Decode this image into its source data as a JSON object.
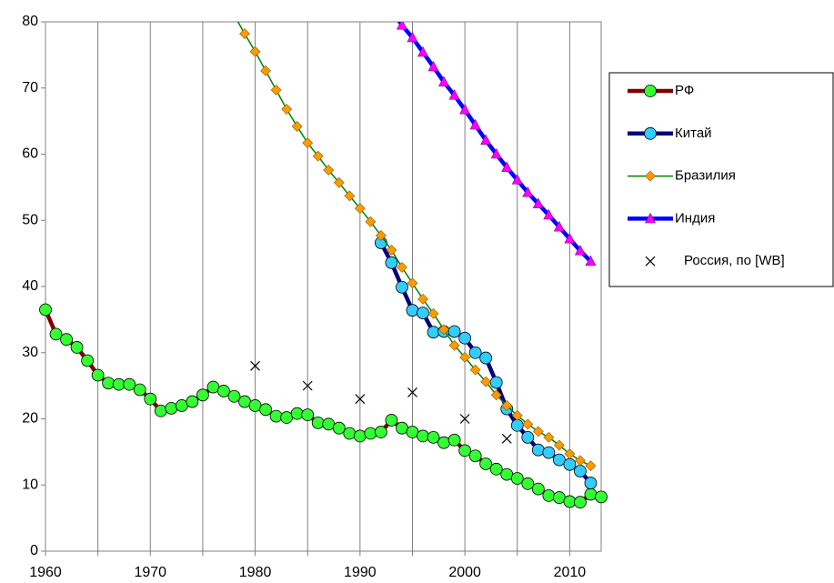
{
  "chart_data": {
    "type": "line",
    "xlim": [
      1960,
      2013
    ],
    "ylim": [
      0,
      80
    ],
    "xticks": [
      1960,
      1970,
      1980,
      1990,
      2000,
      2010
    ],
    "xminorticks": [
      1965,
      1975,
      1985,
      1995,
      2005
    ],
    "yticks": [
      0,
      10,
      20,
      30,
      40,
      50,
      60,
      70,
      80
    ],
    "grid": true,
    "legend": "right",
    "series": [
      {
        "name": "РФ",
        "color": "#800000",
        "marker": "circle",
        "marker_color": "#33ff33",
        "x": [
          1960,
          1961,
          1962,
          1963,
          1964,
          1965,
          1966,
          1967,
          1968,
          1969,
          1970,
          1971,
          1972,
          1973,
          1974,
          1975,
          1976,
          1977,
          1978,
          1979,
          1980,
          1981,
          1982,
          1983,
          1984,
          1985,
          1986,
          1987,
          1988,
          1989,
          1990,
          1991,
          1992,
          1993,
          1994,
          1995,
          1996,
          1997,
          1998,
          1999,
          2000,
          2001,
          2002,
          2003,
          2004,
          2005,
          2006,
          2007,
          2008,
          2009,
          2010,
          2011,
          2012,
          2013
        ],
        "values": [
          36.5,
          32.8,
          32.0,
          30.8,
          28.8,
          26.6,
          25.4,
          25.2,
          25.2,
          24.4,
          23.0,
          21.2,
          21.6,
          22.0,
          22.6,
          23.6,
          24.8,
          24.2,
          23.4,
          22.6,
          22.0,
          21.4,
          20.4,
          20.2,
          20.8,
          20.6,
          19.4,
          19.2,
          18.6,
          17.8,
          17.4,
          17.8,
          18.0,
          19.8,
          18.6,
          18.0,
          17.4,
          17.2,
          16.4,
          16.8,
          15.2,
          14.4,
          13.2,
          12.4,
          11.6,
          11.0,
          10.2,
          9.4,
          8.4,
          8.1,
          7.5,
          7.4,
          8.6,
          8.2
        ]
      },
      {
        "name": "Китай",
        "color": "#000080",
        "marker": "circle",
        "marker_color": "#33ccff",
        "x": [
          1992,
          1993,
          1994,
          1995,
          1996,
          1997,
          1998,
          1999,
          2000,
          2001,
          2002,
          2003,
          2004,
          2005,
          2006,
          2007,
          2008,
          2009,
          2010,
          2011,
          2012
        ],
        "values": [
          46.6,
          43.6,
          39.9,
          36.4,
          36.0,
          33.1,
          33.2,
          33.2,
          32.2,
          30.0,
          29.2,
          25.5,
          21.5,
          19.0,
          17.2,
          15.3,
          14.9,
          13.8,
          13.1,
          12.1,
          10.3
        ]
      },
      {
        "name": "Бразилия",
        "color": "#008000",
        "marker": "diamond",
        "marker_color": "#ff9900",
        "x": [
          1978,
          1979,
          1980,
          1981,
          1982,
          1983,
          1984,
          1985,
          1986,
          1987,
          1988,
          1989,
          1990,
          1991,
          1992,
          1993,
          1994,
          1995,
          1996,
          1997,
          1998,
          1999,
          2000,
          2001,
          2002,
          2003,
          2004,
          2005,
          2006,
          2007,
          2008,
          2009,
          2010,
          2011,
          2012
        ],
        "values": [
          81.0,
          78.2,
          75.5,
          72.6,
          69.7,
          66.8,
          64.2,
          61.7,
          59.7,
          57.6,
          55.7,
          53.7,
          51.8,
          49.8,
          47.7,
          45.5,
          42.9,
          40.5,
          38.1,
          35.9,
          33.5,
          31.1,
          29.3,
          27.4,
          25.6,
          23.6,
          22.0,
          20.5,
          19.2,
          18.1,
          17.2,
          16.0,
          14.7,
          13.7,
          12.9
        ]
      },
      {
        "name": "Индия",
        "color": "#0000ff",
        "marker": "triangle",
        "marker_color": "#ff00ff",
        "x": [
          1993,
          1994,
          1995,
          1996,
          1997,
          1998,
          1999,
          2000,
          2001,
          2002,
          2003,
          2004,
          2005,
          2006,
          2007,
          2008,
          2009,
          2010,
          2011,
          2012
        ],
        "values": [
          81.8,
          79.5,
          77.6,
          75.4,
          73.2,
          70.9,
          68.9,
          66.7,
          64.4,
          62.1,
          60.0,
          58.0,
          56.1,
          54.2,
          52.5,
          50.8,
          49.0,
          47.2,
          45.4,
          43.8
        ]
      },
      {
        "name": "Россия, по [WB]",
        "color": "#000000",
        "marker": "x",
        "line": false,
        "x": [
          1980,
          1985,
          1990,
          1995,
          2000,
          2004
        ],
        "values": [
          28,
          25,
          23,
          24,
          20,
          17
        ]
      }
    ]
  }
}
